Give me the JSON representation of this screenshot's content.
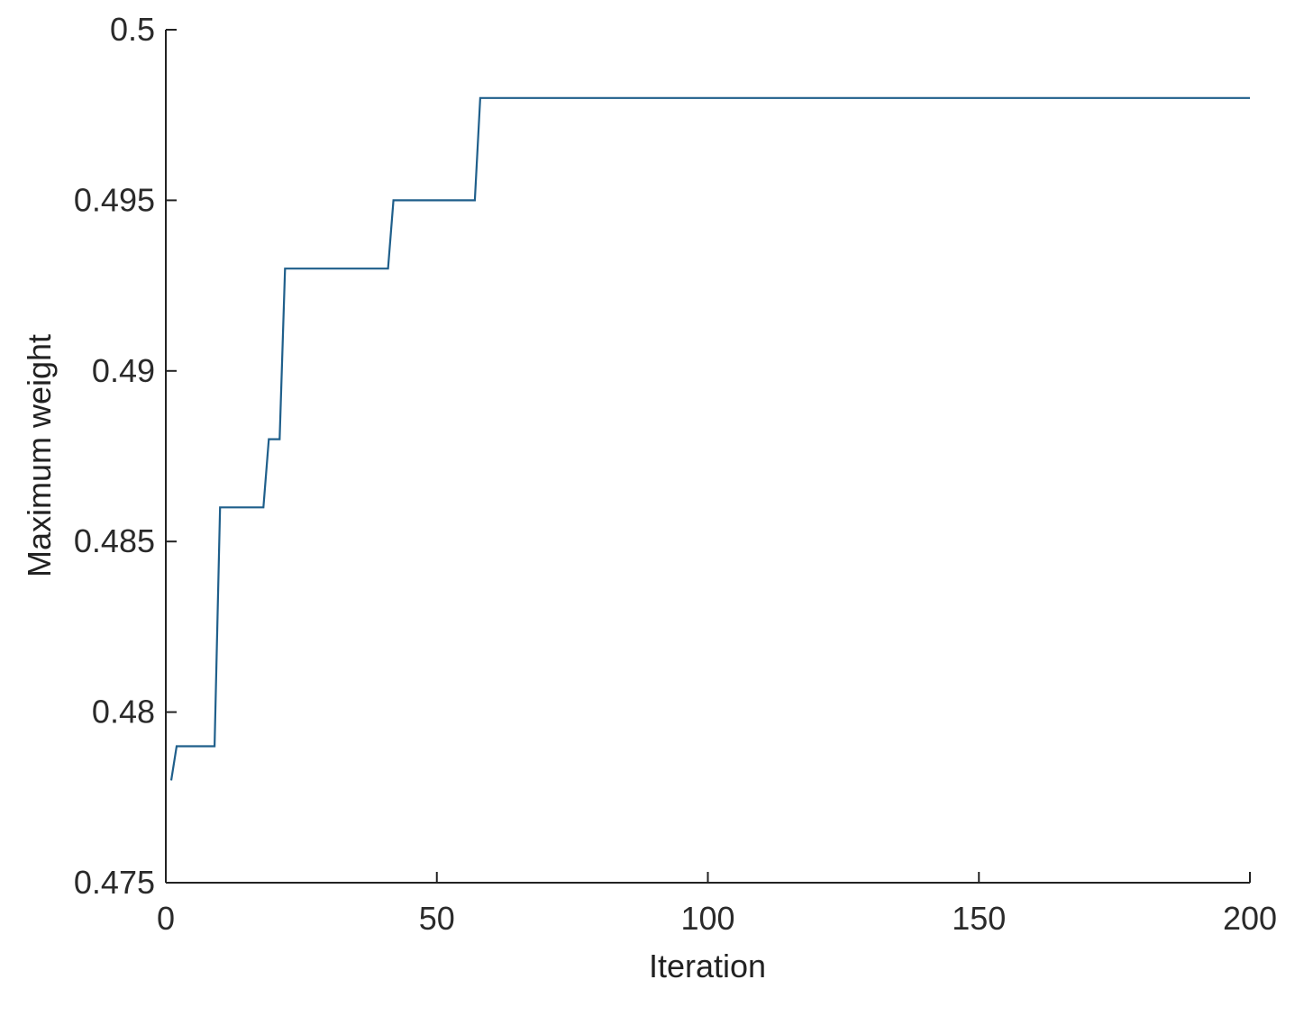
{
  "chart_data": {
    "type": "line",
    "step": true,
    "title": "",
    "xlabel": "Iteration",
    "ylabel": "Maximum weight",
    "xlim": [
      0,
      200
    ],
    "ylim": [
      0.475,
      0.5
    ],
    "xticks": [
      0,
      50,
      100,
      150,
      200
    ],
    "xtick_labels": [
      "0",
      "50",
      "100",
      "150",
      "200"
    ],
    "yticks": [
      0.475,
      0.48,
      0.485,
      0.49,
      0.495,
      0.5
    ],
    "ytick_labels": [
      "0.475",
      "0.48",
      "0.485",
      "0.49",
      "0.495",
      "0.5"
    ],
    "grid": false,
    "box": false,
    "legend": null,
    "line_color": "#1f5f8b",
    "series": [
      {
        "x": [
          1,
          2,
          9,
          10,
          18,
          19,
          21,
          22,
          41,
          42,
          57,
          58,
          200
        ],
        "values": [
          0.478,
          0.479,
          0.479,
          0.486,
          0.486,
          0.488,
          0.488,
          0.493,
          0.493,
          0.495,
          0.495,
          0.498,
          0.498
        ]
      }
    ]
  }
}
